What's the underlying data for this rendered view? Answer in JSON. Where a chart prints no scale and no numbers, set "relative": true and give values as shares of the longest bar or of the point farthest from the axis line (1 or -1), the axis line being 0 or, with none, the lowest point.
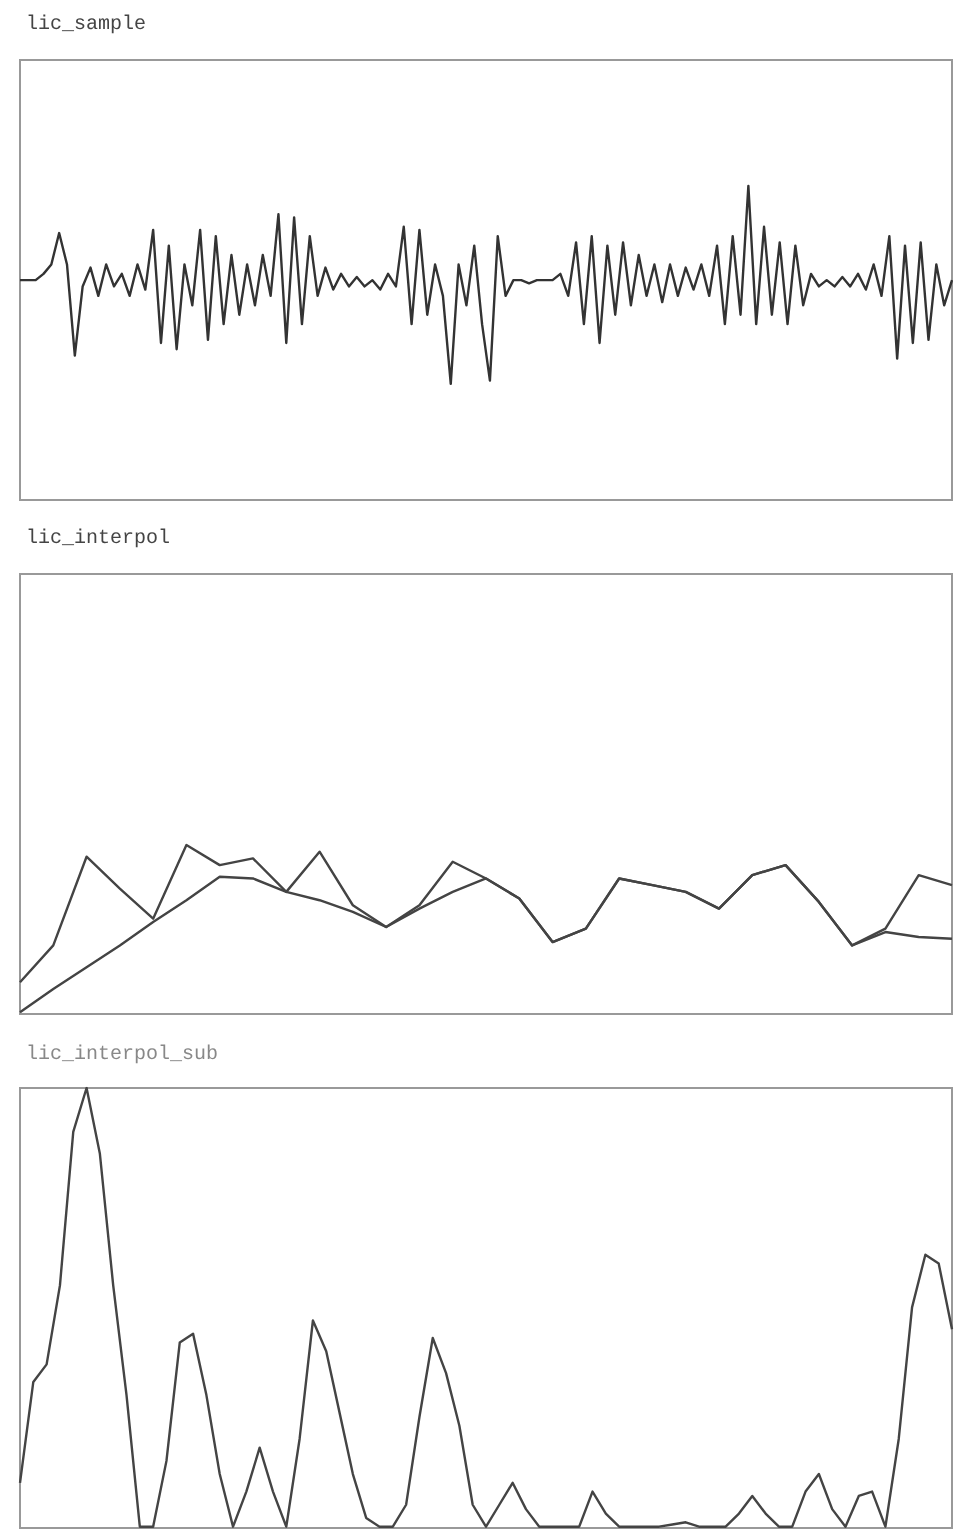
{
  "chart_data": [
    {
      "type": "line",
      "title": "lic_sample",
      "relative": true,
      "marker": "none",
      "color": "#333333",
      "categories": [
        null,
        null,
        null,
        null,
        null,
        null,
        null,
        null,
        null,
        null,
        null,
        null,
        null,
        null,
        null,
        null,
        null,
        null,
        null,
        null,
        null,
        null,
        null,
        null,
        null,
        null,
        null,
        null,
        null,
        null,
        null,
        null,
        null,
        null,
        null,
        null,
        null,
        null,
        null,
        null,
        null,
        null,
        null,
        null,
        null,
        null,
        null,
        null,
        null,
        null,
        null,
        null,
        null,
        null,
        null,
        null,
        null,
        null,
        null,
        null,
        null,
        null,
        null,
        null,
        null,
        null,
        null,
        null,
        null,
        null,
        null,
        null,
        null,
        null,
        null,
        null,
        null,
        null,
        null,
        null,
        null,
        null,
        null,
        null,
        null,
        null,
        null,
        null,
        null,
        null,
        null,
        null,
        null,
        null,
        null,
        null,
        null,
        null,
        null,
        null,
        null,
        null,
        null,
        null,
        null,
        null,
        null,
        null,
        null,
        null,
        null,
        null,
        null,
        null,
        null,
        null,
        null,
        null,
        null,
        null
      ],
      "values": [
        0.7,
        0.7,
        0.7,
        0.72,
        0.75,
        0.85,
        0.75,
        0.46,
        0.68,
        0.74,
        0.65,
        0.75,
        0.68,
        0.72,
        0.65,
        0.75,
        0.67,
        0.86,
        0.5,
        0.81,
        0.48,
        0.75,
        0.62,
        0.86,
        0.51,
        0.84,
        0.56,
        0.78,
        0.59,
        0.75,
        0.62,
        0.78,
        0.65,
        0.91,
        0.5,
        0.9,
        0.56,
        0.84,
        0.65,
        0.74,
        0.67,
        0.72,
        0.68,
        0.71,
        0.68,
        0.7,
        0.67,
        0.72,
        0.68,
        0.87,
        0.56,
        0.86,
        0.59,
        0.75,
        0.65,
        0.37,
        0.75,
        0.62,
        0.81,
        0.56,
        0.38,
        0.84,
        0.65,
        0.7,
        0.7,
        0.69,
        0.7,
        0.7,
        0.7,
        0.72,
        0.65,
        0.82,
        0.56,
        0.84,
        0.5,
        0.81,
        0.59,
        0.82,
        0.62,
        0.78,
        0.65,
        0.75,
        0.63,
        0.75,
        0.65,
        0.74,
        0.67,
        0.75,
        0.65,
        0.81,
        0.56,
        0.84,
        0.59,
        1,
        0.56,
        0.87,
        0.59,
        0.82,
        0.56,
        0.81,
        0.62,
        0.72,
        0.68,
        0.7,
        0.68,
        0.71,
        0.68,
        0.72,
        0.67,
        0.75,
        0.65,
        0.84,
        0.45,
        0.81,
        0.5,
        0.82,
        0.51,
        0.75,
        0.62,
        0.7
      ]
    },
    {
      "type": "line",
      "title": "lic_interpol",
      "relative": true,
      "marker": "none",
      "categories": [
        null,
        null,
        null,
        null,
        null,
        null,
        null,
        null,
        null,
        null,
        null,
        null,
        null,
        null,
        null,
        null,
        null,
        null,
        null,
        null,
        null,
        null,
        null,
        null,
        null,
        null,
        null,
        null,
        null
      ],
      "series": [
        {
          "color": "#444444",
          "values": [
            0.18,
            0.4,
            0.93,
            0.74,
            0.56,
            1,
            0.88,
            0.92,
            0.72,
            0.96,
            0.64,
            0.51,
            0.64,
            0.9,
            0.8,
            0.68,
            0.42,
            0.5,
            0.8,
            0.76,
            0.72,
            0.62,
            0.82,
            0.88,
            0.66,
            0.4,
            0.5,
            0.82,
            0.76
          ]
        },
        {
          "color": "#444444",
          "values": [
            0,
            0.14,
            0.27,
            0.4,
            0.54,
            0.67,
            0.81,
            0.8,
            0.72,
            0.67,
            0.6,
            0.51,
            0.62,
            0.72,
            0.8,
            0.68,
            0.42,
            0.5,
            0.8,
            0.76,
            0.72,
            0.62,
            0.82,
            0.88,
            0.66,
            0.4,
            0.48,
            0.45,
            0.44
          ]
        }
      ]
    },
    {
      "type": "line",
      "title": "lic_interpol_sub",
      "relative": true,
      "marker": "none",
      "color": "#444444",
      "categories": [
        null,
        null,
        null,
        null,
        null,
        null,
        null,
        null,
        null,
        null,
        null,
        null,
        null,
        null,
        null,
        null,
        null,
        null,
        null,
        null,
        null,
        null,
        null,
        null,
        null,
        null,
        null,
        null,
        null,
        null,
        null,
        null,
        null,
        null,
        null,
        null,
        null,
        null,
        null,
        null,
        null,
        null,
        null,
        null,
        null,
        null,
        null,
        null,
        null,
        null,
        null,
        null,
        null,
        null,
        null,
        null,
        null,
        null,
        null,
        null,
        null,
        null,
        null,
        null,
        null,
        null,
        null,
        null,
        null,
        null,
        null
      ],
      "values": [
        0.1,
        0.33,
        0.37,
        0.55,
        0.9,
        1,
        0.85,
        0.55,
        0.3,
        0,
        0,
        0.15,
        0.42,
        0.44,
        0.3,
        0.12,
        0,
        0.08,
        0.18,
        0.08,
        0,
        0.2,
        0.47,
        0.4,
        0.26,
        0.12,
        0.02,
        0,
        0,
        0.05,
        0.25,
        0.43,
        0.35,
        0.23,
        0.05,
        0,
        0.05,
        0.1,
        0.04,
        0,
        0,
        0,
        0,
        0.08,
        0.03,
        0,
        0,
        0,
        0,
        0.005,
        0.01,
        0,
        0,
        0,
        0.03,
        0.07,
        0.03,
        0,
        0,
        0.08,
        0.12,
        0.04,
        0,
        0.07,
        0.08,
        0,
        0.2,
        0.5,
        0.62,
        0.6,
        0.45
      ]
    }
  ]
}
